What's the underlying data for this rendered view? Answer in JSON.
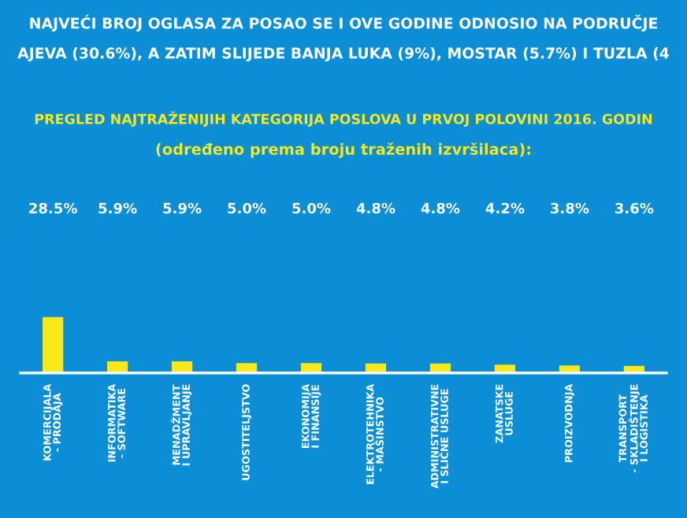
{
  "chart_data": {
    "type": "bar",
    "title": "PREGLED NAJTRAŽENIJIH KATEGORIJA POSLOVA U PRVOJ POLOVINI 2016. GODIN",
    "subtitle": "(određeno prema broju traženih izvršilaca):",
    "annotations": [
      "NAJVEĆI BROJ OGLASA ZA POSAO SE I OVE GODINE ODNOSIO NA PODRUČJE",
      "AJEVA (30.6%), A ZATIM SLIJEDE BANJA LUKA (9%), MOSTAR (5.7%) I TUZLA (4"
    ],
    "categories": [
      "KOMERCIJALA\n- PRODAJA",
      "INFORMATIKA\n- SOFTWARE",
      "MENADŽMENT\nI UPRAVLJANJE",
      "UGOSTITELJSTVO",
      "EKONOMIJA\nI FINANSIJE",
      "ELEKTROTEHNIKA\n- MAŠINSTVO",
      "ADMINISTRATIVNE\nI SLIČNE USLUGE",
      "ZANATSKE\nUSLUGE",
      "PROIZVODNJA",
      "TRANSPORT\n- SKLADIŠTENJE\nI LOGISTIKA"
    ],
    "values": [
      28.5,
      5.9,
      5.9,
      5.0,
      5.0,
      4.8,
      4.8,
      4.2,
      3.8,
      3.6
    ],
    "value_labels": [
      "28.5%",
      "5.9%",
      "5.9%",
      "5.0%",
      "5.0%",
      "4.8%",
      "4.8%",
      "4.2%",
      "3.8%",
      "3.6%"
    ],
    "color": "#f7e81a"
  }
}
